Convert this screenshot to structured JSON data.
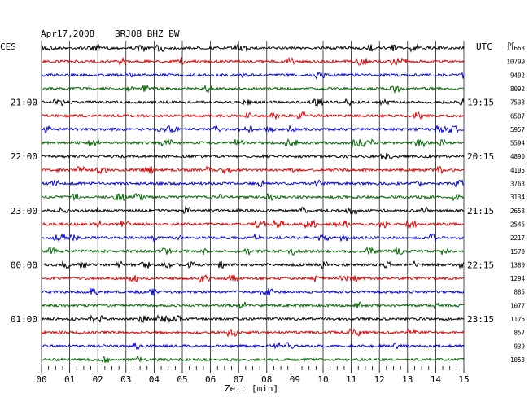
{
  "header": {
    "date": "Apr17,2008",
    "station": "BRJOB BHZ BW",
    "left_tz": "CES",
    "right_tz": "UTC",
    "dc_label": "DC"
  },
  "chart_data": {
    "type": "line",
    "xlabel": "Zeit [min]",
    "xlim": [
      0,
      15
    ],
    "x_ticks": [
      "00",
      "01",
      "02",
      "03",
      "04",
      "05",
      "06",
      "07",
      "08",
      "09",
      "10",
      "11",
      "12",
      "13",
      "14",
      "15"
    ],
    "row_count": 24,
    "row_colors": [
      "#000000",
      "#dd0000",
      "#0000dd",
      "#006600"
    ],
    "left_time_labels": [
      {
        "row": 4,
        "text": "21:00"
      },
      {
        "row": 8,
        "text": "22:00"
      },
      {
        "row": 12,
        "text": "23:00"
      },
      {
        "row": 16,
        "text": "00:00"
      },
      {
        "row": 20,
        "text": "01:00"
      }
    ],
    "right_time_labels": [
      {
        "row": 4,
        "text": "19:15"
      },
      {
        "row": 8,
        "text": "20:15"
      },
      {
        "row": 12,
        "text": "21:15"
      },
      {
        "row": 16,
        "text": "22:15"
      },
      {
        "row": 20,
        "text": "23:15"
      }
    ],
    "dc_values": [
      "11663",
      "10799",
      "9492",
      "8092",
      "7538",
      "6587",
      "5957",
      "5594",
      "4890",
      "4105",
      "3763",
      "3134",
      "2653",
      "2545",
      "2217",
      "1570",
      "1380",
      "1294",
      "885",
      "1077",
      "1176",
      "857",
      "939",
      "1053"
    ]
  }
}
